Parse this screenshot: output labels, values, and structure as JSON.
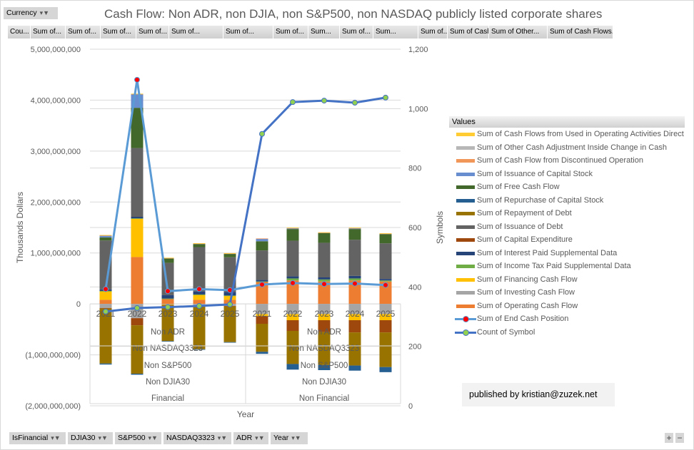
{
  "currency_filter": {
    "label": "Currency"
  },
  "value_fields": [
    "Cou...",
    "Sum of...",
    "Sum of...",
    "Sum of...",
    "Sum of...",
    "Sum of...",
    "Sum of...",
    "Sum of...",
    "Sum...",
    "Sum of...",
    "Sum...",
    "Sum of...",
    "Sum of Cash...",
    "Sum of Other...",
    "Sum of Cash Flows..."
  ],
  "axis_fields": [
    "IsFinancial",
    "DJIA30",
    "S&P500",
    "NASDAQ3323",
    "ADR",
    "Year"
  ],
  "publisher": "published by kristian@zuzek.net",
  "zoom_controls": {
    "plus": "+",
    "minus": "−"
  },
  "chart_data": {
    "type": "bar",
    "stacked": true,
    "title": "Cash Flow: Non ADR, non DJIA, non S&P500, non NASDAQ publicly listed corporate shares",
    "xlabel": "Year",
    "ylabel": "Thousands Dollars",
    "y2label": "Symbols",
    "ylim": [
      -2000000000,
      5000000000
    ],
    "y2lim": [
      0,
      1200
    ],
    "yticks": [
      "5,000,000,000",
      "4,000,000,000",
      "3,000,000,000",
      "2,000,000,000",
      "1,000,000,000",
      "0",
      "(1,000,000,000)",
      "(2,000,000,000)"
    ],
    "ytick_values": [
      5000000000,
      4000000000,
      3000000000,
      2000000000,
      1000000000,
      0,
      -1000000000,
      -2000000000
    ],
    "y2ticks": [
      "1,200",
      "1,000",
      "800",
      "600",
      "400",
      "200",
      "0"
    ],
    "y2tick_values": [
      1200,
      1000,
      800,
      600,
      400,
      200,
      0
    ],
    "grid": true,
    "legend_title": "Values",
    "legend_position": "right",
    "category_groups": [
      {
        "label": "Financial",
        "sublabels": [
          "Non ADR",
          "Non NASDAQ3323",
          "Non S&P500",
          "Non DJIA30"
        ],
        "years": [
          "2021",
          "2022",
          "2023",
          "2024",
          "2025"
        ]
      },
      {
        "label": "Non Financial",
        "sublabels": [
          "Non ADR",
          "Non NASDAQ3323",
          "Non S&P500",
          "Non DJIA30"
        ],
        "years": [
          "2021",
          "2022",
          "2023",
          "2024",
          "2025"
        ]
      }
    ],
    "categories": [
      "Financial 2021",
      "Financial 2022",
      "Financial 2023",
      "Financial 2024",
      "Financial 2025",
      "Non Financial 2021",
      "Non Financial 2022",
      "Non Financial 2023",
      "Non Financial 2024",
      "Non Financial 2025"
    ],
    "series": [
      {
        "name": "Sum of Operating Cash Flow",
        "color": "#ED7D31",
        "values": [
          80000000,
          920000000,
          100000000,
          80000000,
          80000000,
          430000000,
          460000000,
          440000000,
          460000000,
          440000000
        ]
      },
      {
        "name": "Sum of Investing Cash Flow",
        "color": "#A5A5A5",
        "values": [
          -80000000,
          -280000000,
          -10000000,
          -30000000,
          -40000000,
          -200000000,
          -200000000,
          -200000000,
          -200000000,
          -200000000
        ]
      },
      {
        "name": "Sum of Financing Cash Flow",
        "color": "#FFC000",
        "values": [
          170000000,
          750000000,
          -10000000,
          100000000,
          80000000,
          -40000000,
          -120000000,
          -120000000,
          -120000000,
          -120000000
        ]
      },
      {
        "name": "Sum of Income Tax Paid Supplemental Data",
        "color": "#70AD47",
        "values": [
          5000000,
          10000000,
          5000000,
          5000000,
          5000000,
          10000000,
          40000000,
          40000000,
          40000000,
          20000000
        ]
      },
      {
        "name": "Sum of Interest Paid Supplemental Data",
        "color": "#264478",
        "values": [
          30000000,
          30000000,
          70000000,
          60000000,
          70000000,
          30000000,
          40000000,
          40000000,
          50000000,
          30000000
        ]
      },
      {
        "name": "Sum of Capital Expenditure",
        "color": "#9E480E",
        "values": [
          -10000000,
          -140000000,
          -10000000,
          -10000000,
          -10000000,
          -150000000,
          -210000000,
          -230000000,
          -240000000,
          -240000000
        ]
      },
      {
        "name": "Sum of Issuance of Debt",
        "color": "#636363",
        "values": [
          960000000,
          1350000000,
          630000000,
          870000000,
          680000000,
          580000000,
          700000000,
          680000000,
          710000000,
          700000000
        ]
      },
      {
        "name": "Sum of Repayment of Debt",
        "color": "#997300",
        "values": [
          -1080000000,
          -950000000,
          -700000000,
          -850000000,
          -700000000,
          -550000000,
          -650000000,
          -650000000,
          -650000000,
          -680000000
        ]
      },
      {
        "name": "Sum of Repurchase of Capital Stock",
        "color": "#255E91",
        "values": [
          -20000000,
          -20000000,
          -10000000,
          -10000000,
          -10000000,
          -40000000,
          -110000000,
          -100000000,
          -100000000,
          -100000000
        ]
      },
      {
        "name": "Sum of Free Cash Flow",
        "color": "#43682B",
        "values": [
          60000000,
          790000000,
          90000000,
          60000000,
          70000000,
          180000000,
          230000000,
          190000000,
          210000000,
          180000000
        ]
      },
      {
        "name": "Sum of Issuance of Capital Stock",
        "color": "#698ED0",
        "values": [
          40000000,
          270000000,
          5000000,
          10000000,
          5000000,
          50000000,
          20000000,
          10000000,
          20000000,
          10000000
        ]
      },
      {
        "name": "Sum of Cash Flow from Discontinued Operation",
        "color": "#F1975A",
        "values": [
          2000000,
          2000000,
          2000000,
          2000000,
          2000000,
          5000000,
          2000000,
          2000000,
          2000000,
          2000000
        ]
      },
      {
        "name": "Sum of Other Cash Adjustment Inside Change in Cash",
        "color": "#B7B7B7",
        "values": [
          0,
          0,
          0,
          0,
          0,
          0,
          0,
          0,
          0,
          0
        ]
      },
      {
        "name": "Sum of Cash Flows from Used in Operating Activities Direct",
        "color": "#FFCD33",
        "values": [
          5000000,
          5000000,
          5000000,
          5000000,
          5000000,
          0,
          5000000,
          5000000,
          5000000,
          5000000
        ]
      }
    ],
    "line_series": [
      {
        "name": "Sum of End Cash Position",
        "axis": "left",
        "color": "#5B9BD5",
        "marker_color": "#FF0000",
        "values": [
          290000000,
          4400000000,
          250000000,
          290000000,
          270000000,
          380000000,
          410000000,
          390000000,
          400000000,
          370000000
        ]
      },
      {
        "name": "Count of Symbol",
        "axis": "right",
        "color": "#4472C4",
        "marker_color": "#92D050",
        "values": [
          317,
          329,
          332,
          336,
          341,
          915,
          1022,
          1027,
          1020,
          1037
        ]
      }
    ],
    "legend_order": [
      "Sum of Cash Flows from Used in Operating Activities Direct",
      "Sum of Other Cash Adjustment Inside Change in Cash",
      "Sum of Cash Flow from Discontinued Operation",
      "Sum of Issuance of Capital Stock",
      "Sum of Free Cash Flow",
      "Sum of Repurchase of Capital Stock",
      "Sum of Repayment of Debt",
      "Sum of Issuance of Debt",
      "Sum of Capital Expenditure",
      "Sum of Interest Paid Supplemental Data",
      "Sum of Income Tax Paid Supplemental Data",
      "Sum of Financing Cash Flow",
      "Sum of Investing Cash Flow",
      "Sum of Operating Cash Flow",
      "Sum of End Cash Position",
      "Count of Symbol"
    ]
  }
}
